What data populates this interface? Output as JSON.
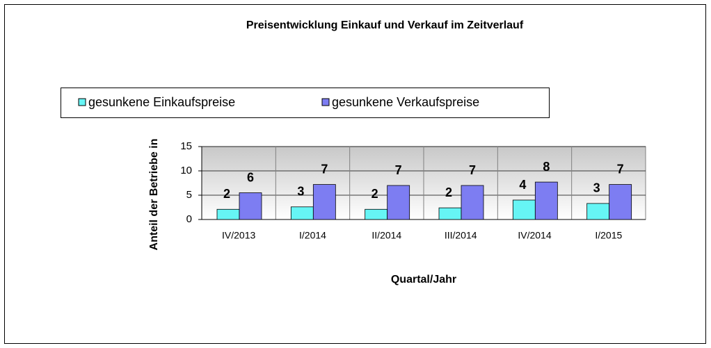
{
  "chart_data": {
    "type": "bar",
    "title": "Preisentwicklung Einkauf und Verkauf im Zeitverlauf",
    "x_label": "Quartal/Jahr",
    "y_label": "Anteil der Betriebe in",
    "categories": [
      "IV/2013",
      "I/2014",
      "II/2014",
      "III/2014",
      "IV/2014",
      "I/2015"
    ],
    "series": [
      {
        "name": "gesunkene Einkaufspreise",
        "color": "#66f5f5",
        "values": [
          2.1,
          2.6,
          2.1,
          2.4,
          4.0,
          3.3
        ],
        "value_labels": [
          "2",
          "3",
          "2",
          "2",
          "4",
          "3"
        ]
      },
      {
        "name": "gesunkene Verkaufspreise",
        "color": "#7d7df2",
        "values": [
          5.5,
          7.2,
          7.0,
          7.0,
          7.7,
          7.2
        ],
        "value_labels": [
          "6",
          "7",
          "7",
          "7",
          "8",
          "7"
        ]
      }
    ],
    "ylim": [
      0,
      15
    ],
    "yticks": [
      0,
      5,
      10,
      15
    ],
    "grid": true,
    "legend": "top"
  }
}
